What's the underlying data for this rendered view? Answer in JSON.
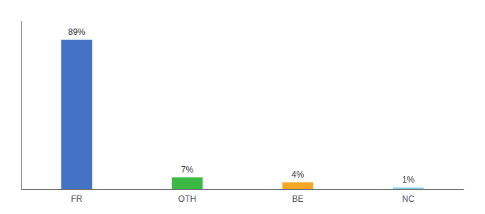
{
  "chart_data": {
    "type": "bar",
    "categories": [
      "FR",
      "OTH",
      "BE",
      "NC"
    ],
    "values": [
      89,
      7,
      4,
      1
    ],
    "value_labels": [
      "89%",
      "7%",
      "4%",
      "1%"
    ],
    "colors": [
      "#4472c4",
      "#3cb844",
      "#f5a623",
      "#87ceeb"
    ],
    "ylim": [
      0,
      100
    ],
    "grid": false,
    "data_labels": true,
    "tick_labels": "x"
  }
}
